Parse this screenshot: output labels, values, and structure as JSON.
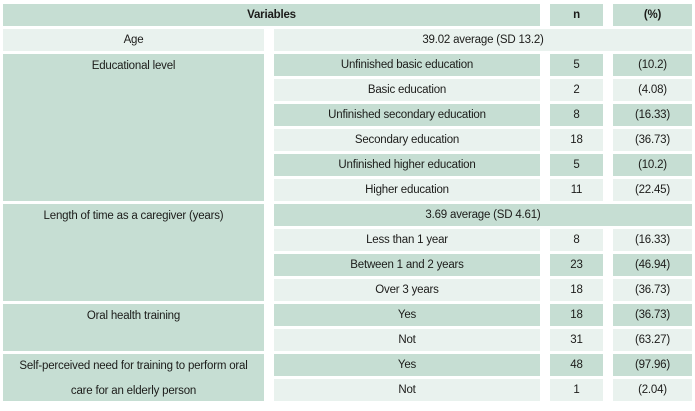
{
  "colors": {
    "row_medium": "#c6ded3",
    "row_light": "#e9f2ee",
    "text": "#1c1c1a"
  },
  "header": {
    "variables": "Variables",
    "n": "n",
    "pct": "(%)"
  },
  "groups": [
    {
      "label": "Age",
      "summary": "39.02 average (SD 13.2)",
      "items": []
    },
    {
      "label": "Educational level",
      "items": [
        {
          "value": "Unfinished basic education",
          "n": "5",
          "pct": "(10.2)"
        },
        {
          "value": "Basic education",
          "n": "2",
          "pct": "(4.08)"
        },
        {
          "value": "Unfinished secondary education",
          "n": "8",
          "pct": "(16.33)"
        },
        {
          "value": "Secondary education",
          "n": "18",
          "pct": "(36.73)"
        },
        {
          "value": "Unfinished higher education",
          "n": "5",
          "pct": "(10.2)"
        },
        {
          "value": "Higher education",
          "n": "11",
          "pct": "(22.45)"
        }
      ]
    },
    {
      "label": "Length of time as a caregiver (years)",
      "summary": "3.69 average (SD 4.61)",
      "items": [
        {
          "value": "Less than 1 year",
          "n": "8",
          "pct": "(16.33)"
        },
        {
          "value": "Between 1 and 2 years",
          "n": "23",
          "pct": "(46.94)"
        },
        {
          "value": "Over 3 years",
          "n": "18",
          "pct": "(36.73)"
        }
      ]
    },
    {
      "label": "Oral health training",
      "items": [
        {
          "value": "Yes",
          "n": "18",
          "pct": "(36.73)"
        },
        {
          "value": "Not",
          "n": "31",
          "pct": "(63.27)"
        }
      ]
    },
    {
      "label": "Self-perceived need for training to perform oral care for an elderly person",
      "items": [
        {
          "value": "Yes",
          "n": "48",
          "pct": "(97.96)"
        },
        {
          "value": "Not",
          "n": "1",
          "pct": "(2.04)"
        }
      ]
    }
  ]
}
